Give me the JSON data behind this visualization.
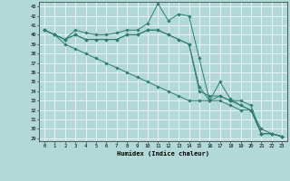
{
  "xlabel": "Humidex (Indice chaleur)",
  "background_color": "#b2d8d8",
  "grid_color": "#ffffff",
  "line_color": "#2e7d6e",
  "xlim": [
    -0.5,
    23.5
  ],
  "ylim": [
    28.7,
    43.5
  ],
  "xticks": [
    0,
    1,
    2,
    3,
    4,
    5,
    6,
    7,
    8,
    9,
    10,
    11,
    12,
    13,
    14,
    15,
    16,
    17,
    18,
    19,
    20,
    21,
    22,
    23
  ],
  "yticks": [
    29,
    30,
    31,
    32,
    33,
    34,
    35,
    36,
    37,
    38,
    39,
    40,
    41,
    42,
    43
  ],
  "series": [
    [
      40.5,
      40.0,
      39.5,
      40.5,
      40.2,
      40.0,
      40.0,
      40.2,
      40.5,
      40.5,
      41.2,
      43.3,
      41.5,
      42.2,
      42.0,
      37.5,
      33.0,
      35.0,
      33.2,
      32.5,
      32.0,
      29.5,
      29.5,
      29.2
    ],
    [
      40.5,
      40.0,
      39.0,
      38.5,
      38.0,
      37.5,
      37.0,
      36.5,
      36.0,
      35.5,
      35.0,
      34.5,
      34.0,
      33.5,
      33.0,
      33.0,
      33.0,
      33.0,
      32.5,
      32.0,
      32.0,
      30.0,
      29.5,
      29.2
    ],
    [
      40.5,
      40.0,
      39.5,
      40.0,
      39.5,
      39.5,
      39.5,
      39.5,
      40.0,
      40.0,
      40.5,
      40.5,
      40.0,
      39.5,
      39.0,
      34.0,
      33.5,
      33.5,
      33.0,
      33.0,
      32.5,
      29.5,
      29.5,
      29.2
    ],
    [
      40.5,
      40.0,
      39.5,
      40.0,
      39.5,
      39.5,
      39.5,
      39.5,
      40.0,
      40.0,
      40.5,
      40.5,
      40.0,
      39.5,
      39.0,
      34.5,
      33.0,
      33.5,
      33.0,
      32.5,
      32.0,
      29.5,
      29.5,
      29.2
    ]
  ]
}
